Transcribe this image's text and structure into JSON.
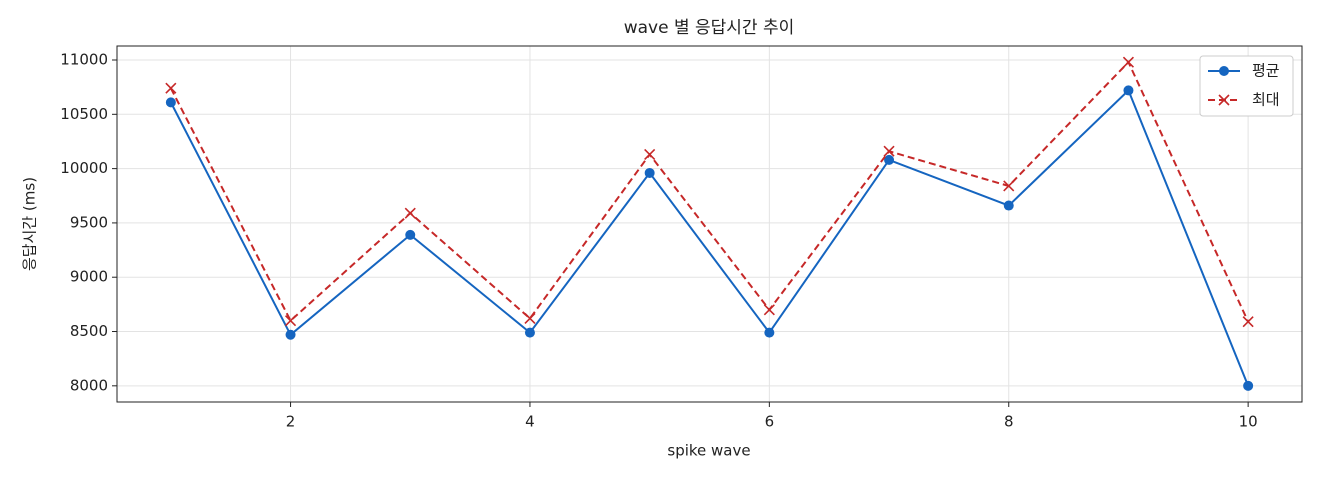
{
  "chart_data": {
    "type": "line",
    "title": "wave 별 응답시간 추이",
    "x_label": "spike wave",
    "y_label": "응답시간 (ms)",
    "x": [
      1,
      2,
      3,
      4,
      5,
      6,
      7,
      8,
      9,
      10
    ],
    "series": [
      {
        "name": "평균",
        "color": "#1565c0",
        "marker": "circle",
        "dash": false,
        "values": [
          10610,
          8470,
          9390,
          8490,
          9960,
          8490,
          10080,
          9660,
          10720,
          8000
        ]
      },
      {
        "name": "최대",
        "color": "#c62828",
        "marker": "x",
        "dash": true,
        "values": [
          10740,
          8600,
          9590,
          8620,
          10130,
          8700,
          10160,
          9840,
          10980,
          8590
        ]
      }
    ],
    "xlim": [
      0.55,
      10.45
    ],
    "xticks": [
      2,
      4,
      6,
      8,
      10
    ],
    "ylim": [
      7851,
      11129
    ],
    "yticks": [
      8000,
      8500,
      9000,
      9500,
      10000,
      10500,
      11000
    ],
    "grid": true,
    "legend": "upper right"
  }
}
